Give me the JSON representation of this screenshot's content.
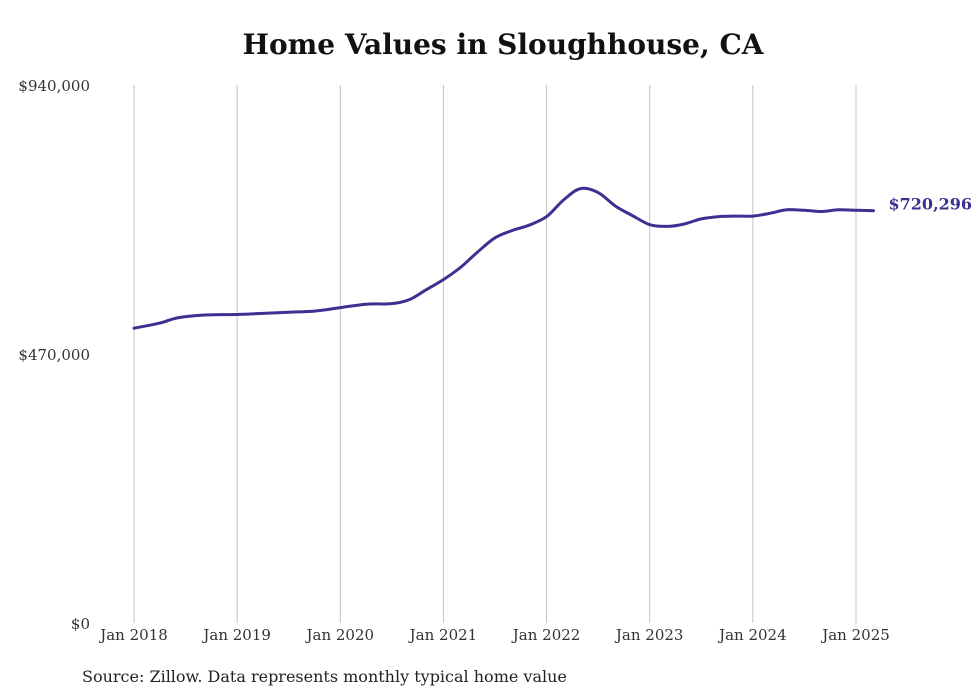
{
  "chart_data": {
    "type": "line",
    "title": "Home Values in Sloughhouse, CA",
    "xlabel": "",
    "ylabel": "",
    "ylim": [
      0,
      940000
    ],
    "y_ticks": [
      {
        "value": 0,
        "label": "$0"
      },
      {
        "value": 470000,
        "label": "$470,000"
      },
      {
        "value": 940000,
        "label": "$940,000"
      }
    ],
    "x_ticks": [
      {
        "value": 2018,
        "label": "Jan 2018"
      },
      {
        "value": 2019,
        "label": "Jan 2019"
      },
      {
        "value": 2020,
        "label": "Jan 2020"
      },
      {
        "value": 2021,
        "label": "Jan 2021"
      },
      {
        "value": 2022,
        "label": "Jan 2022"
      },
      {
        "value": 2023,
        "label": "Jan 2023"
      },
      {
        "value": 2024,
        "label": "Jan 2024"
      },
      {
        "value": 2025,
        "label": "Jan 2025"
      }
    ],
    "grid": "vertical",
    "series": [
      {
        "color": "#3a3191",
        "end_label": "$720,296",
        "points": [
          [
            2018.0,
            515000
          ],
          [
            2018.25,
            524000
          ],
          [
            2018.42,
            533000
          ],
          [
            2018.67,
            538000
          ],
          [
            2019.0,
            539000
          ],
          [
            2019.25,
            541000
          ],
          [
            2019.5,
            543000
          ],
          [
            2019.75,
            545000
          ],
          [
            2020.0,
            551000
          ],
          [
            2020.25,
            557000
          ],
          [
            2020.5,
            558000
          ],
          [
            2020.67,
            565000
          ],
          [
            2020.83,
            582000
          ],
          [
            2021.0,
            600000
          ],
          [
            2021.17,
            622000
          ],
          [
            2021.33,
            648000
          ],
          [
            2021.5,
            673000
          ],
          [
            2021.67,
            686000
          ],
          [
            2021.83,
            695000
          ],
          [
            2022.0,
            710000
          ],
          [
            2022.17,
            740000
          ],
          [
            2022.33,
            759000
          ],
          [
            2022.5,
            752000
          ],
          [
            2022.67,
            728000
          ],
          [
            2022.83,
            712000
          ],
          [
            2023.0,
            696000
          ],
          [
            2023.17,
            693000
          ],
          [
            2023.33,
            697000
          ],
          [
            2023.5,
            706000
          ],
          [
            2023.67,
            710000
          ],
          [
            2023.83,
            711000
          ],
          [
            2024.0,
            711000
          ],
          [
            2024.17,
            716000
          ],
          [
            2024.33,
            722000
          ],
          [
            2024.5,
            721000
          ],
          [
            2024.67,
            719000
          ],
          [
            2024.83,
            722000
          ],
          [
            2025.0,
            721000
          ],
          [
            2025.17,
            720296
          ]
        ]
      }
    ]
  },
  "footer": {
    "source": "Source: Zillow. Data represents monthly typical home value"
  }
}
